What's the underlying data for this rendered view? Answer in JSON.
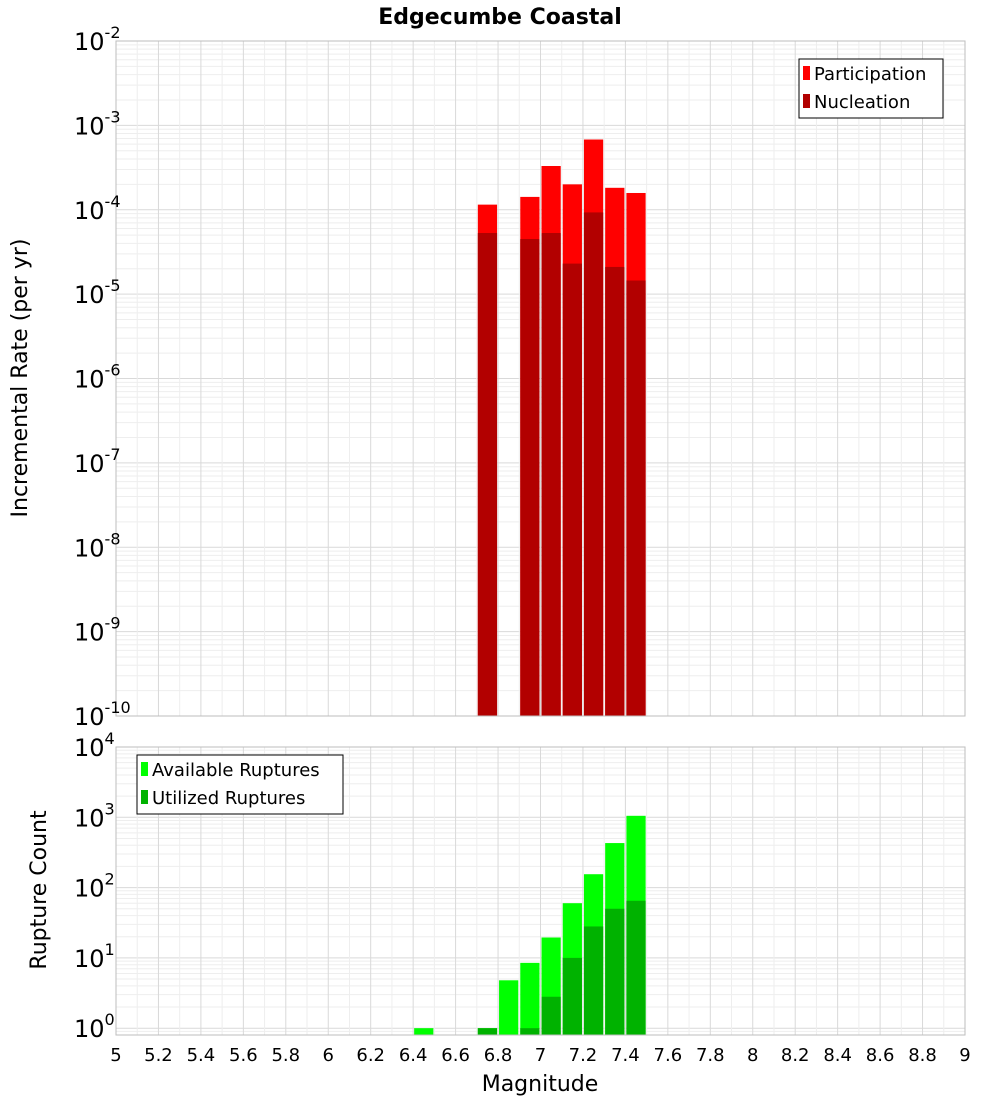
{
  "chart_data": [
    {
      "type": "bar",
      "title": "Edgecumbe Coastal",
      "xlabel": "",
      "ylabel": "Incremental Rate (per yr)",
      "y_scale": "log",
      "ylim": [
        1e-10,
        0.01
      ],
      "xlim": [
        5,
        9
      ],
      "grid": true,
      "legend_position": "top-right",
      "x": [
        6.75,
        6.95,
        7.05,
        7.15,
        7.25,
        7.35,
        7.45
      ],
      "series": [
        {
          "name": "Participation",
          "color": "#ff0000",
          "values": [
            0.000115,
            0.000142,
            0.00033,
            0.0002,
            0.00068,
            0.000182,
            0.000158
          ]
        },
        {
          "name": "Nucleation",
          "color": "#b20000",
          "values": [
            5.3e-05,
            4.5e-05,
            5.3e-05,
            2.3e-05,
            9.3e-05,
            2.1e-05,
            1.45e-05
          ]
        }
      ],
      "y_ticks": [
        {
          "base": "10",
          "exp": "-2"
        },
        {
          "base": "10",
          "exp": "-3"
        },
        {
          "base": "10",
          "exp": "-4"
        },
        {
          "base": "10",
          "exp": "-5"
        },
        {
          "base": "10",
          "exp": "-6"
        },
        {
          "base": "10",
          "exp": "-7"
        },
        {
          "base": "10",
          "exp": "-8"
        },
        {
          "base": "10",
          "exp": "-9"
        },
        {
          "base": "10",
          "exp": "-10"
        }
      ]
    },
    {
      "type": "bar",
      "title": "",
      "xlabel": "Magnitude",
      "ylabel": "Rupture Count",
      "y_scale": "log",
      "ylim": [
        0.8,
        10000
      ],
      "xlim": [
        5,
        9
      ],
      "grid": true,
      "legend_position": "top-left",
      "x": [
        6.45,
        6.75,
        6.85,
        6.95,
        7.05,
        7.15,
        7.25,
        7.35,
        7.45
      ],
      "series": [
        {
          "name": "Available Ruptures",
          "color": "#00ff00",
          "values": [
            1,
            1,
            4.8,
            8.5,
            19.5,
            60,
            155,
            430,
            1050
          ]
        },
        {
          "name": "Utilized Ruptures",
          "color": "#00b200",
          "values": [
            null,
            1,
            null,
            1,
            2.8,
            10,
            28,
            50,
            65
          ]
        }
      ],
      "y_ticks": [
        {
          "base": "10",
          "exp": "4"
        },
        {
          "base": "10",
          "exp": "3"
        },
        {
          "base": "10",
          "exp": "2"
        },
        {
          "base": "10",
          "exp": "1"
        },
        {
          "base": "10",
          "exp": "0"
        }
      ],
      "x_tick_labels": [
        "5",
        "5.2",
        "5.4",
        "5.6",
        "5.8",
        "6",
        "6.2",
        "6.4",
        "6.6",
        "6.8",
        "7",
        "7.2",
        "7.4",
        "7.6",
        "7.8",
        "8",
        "8.2",
        "8.4",
        "8.6",
        "8.8",
        "9"
      ]
    }
  ]
}
